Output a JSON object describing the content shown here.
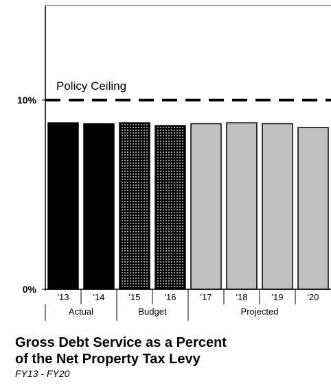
{
  "chart_data": {
    "type": "bar",
    "categories": [
      "'13",
      "'14",
      "'15",
      "'16",
      "'17",
      "'18",
      "'19",
      "'20"
    ],
    "values": [
      8.8,
      8.75,
      8.8,
      8.65,
      8.75,
      8.8,
      8.75,
      8.55
    ],
    "bar_styles": [
      "actual",
      "actual",
      "budget",
      "budget",
      "projected",
      "projected",
      "projected",
      "projected"
    ],
    "groups": [
      {
        "label": "Actual",
        "count": 2
      },
      {
        "label": "Budget",
        "count": 2
      },
      {
        "label": "Projected",
        "count": 4
      }
    ],
    "ylim": [
      0,
      15
    ],
    "yticks": [
      {
        "value": 0,
        "label": "0%"
      },
      {
        "value": 10,
        "label": "10%"
      }
    ],
    "reference_line": {
      "value": 10,
      "label": "Policy Ceiling",
      "style": "dashed"
    },
    "colors": {
      "actual": "#000000",
      "budget_dots": "#000000",
      "budget_bg": "#ffffff",
      "projected": "#c0c0c0"
    },
    "title": "Gross Debt Service as a Percent of the Net Property Tax Levy",
    "title_lines": [
      "Gross Debt Service as a Percent",
      "of the Net Property Tax Levy"
    ],
    "subtitle": "FY13 - FY20",
    "grid": false
  }
}
